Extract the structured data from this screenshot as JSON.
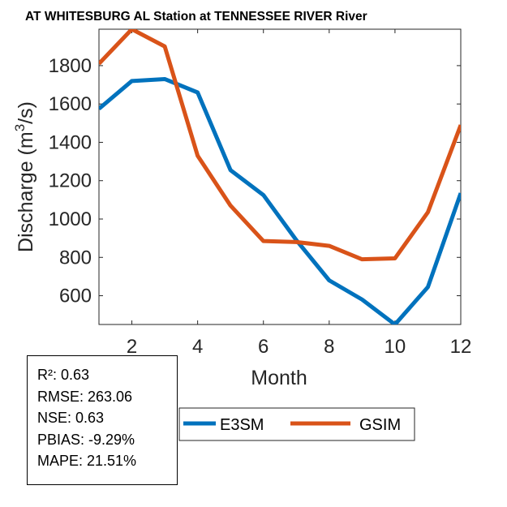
{
  "chart_data": {
    "type": "line",
    "title": "AT WHITESBURG AL  Station at  TENNESSEE RIVER  River",
    "xlabel": "Month",
    "ylabel": "Discharge (m",
    "ylabel_sup": "3",
    "ylabel_tail": "/s)",
    "x": [
      1,
      2,
      3,
      4,
      5,
      6,
      7,
      8,
      9,
      10,
      11,
      12
    ],
    "xlim": [
      1,
      12
    ],
    "ylim": [
      450,
      1990
    ],
    "xticks": [
      2,
      4,
      6,
      8,
      10,
      12
    ],
    "xtick_labels": [
      "2",
      "4",
      "6",
      "8",
      "10",
      "12"
    ],
    "yticks": [
      600,
      800,
      1000,
      1200,
      1400,
      1600,
      1800
    ],
    "ytick_labels": [
      "600",
      "800",
      "1000",
      "1200",
      "1400",
      "1600",
      "1800"
    ],
    "grid": false,
    "legend_position": "bottom-center",
    "series": [
      {
        "name": "E3SM",
        "color": "#0072BD",
        "values": [
          1575,
          1720,
          1730,
          1660,
          1255,
          1125,
          890,
          680,
          580,
          450,
          645,
          1135
        ]
      },
      {
        "name": "GSIM",
        "color": "#D95319",
        "values": [
          1810,
          1990,
          1900,
          1330,
          1070,
          885,
          880,
          860,
          790,
          795,
          1035,
          1490
        ]
      }
    ]
  },
  "stats": {
    "r2": "R²: 0.63",
    "rmse": "RMSE: 263.06",
    "nse": "NSE: 0.63",
    "pbias": "PBIAS: -9.29%",
    "mape": "MAPE: 21.51%"
  }
}
